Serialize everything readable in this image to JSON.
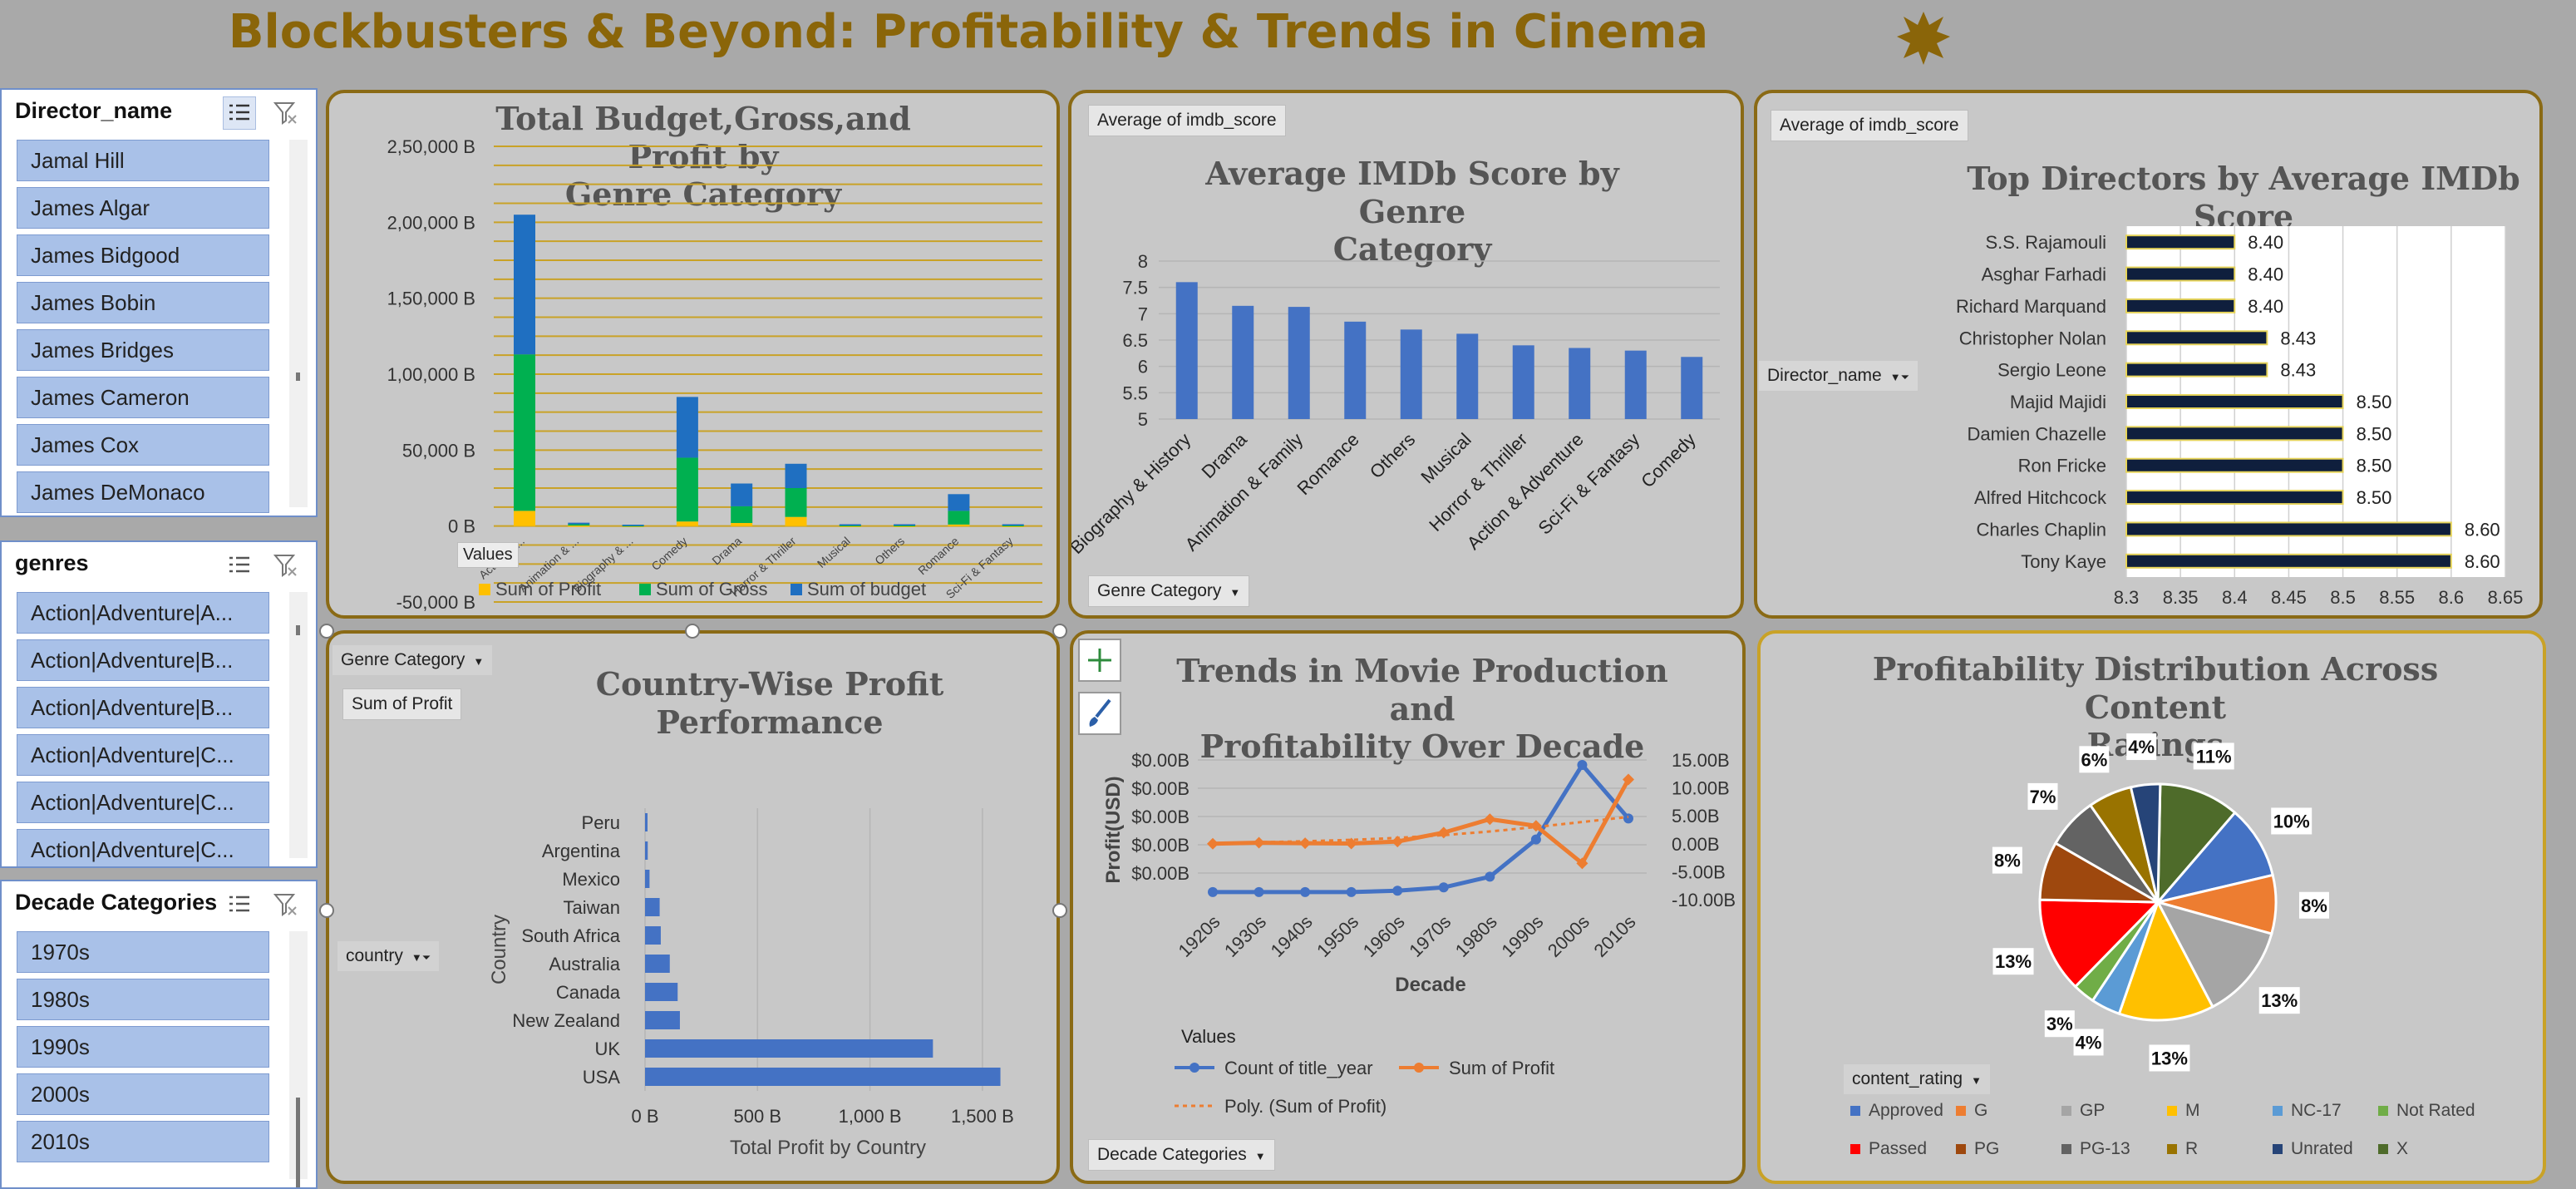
{
  "dashboard": {
    "title": "Blockbusters & Beyond: Profitability & Trends in Cinema"
  },
  "slicers": {
    "director": {
      "header": "Director_name",
      "items": [
        "Jamal Hill",
        "James Algar",
        "James Bidgood",
        "James Bobin",
        "James Bridges",
        "James Cameron",
        "James Cox",
        "James DeMonaco"
      ]
    },
    "genres": {
      "header": "genres",
      "items": [
        "Action|Adventure|A...",
        "Action|Adventure|B...",
        "Action|Adventure|B...",
        "Action|Adventure|C...",
        "Action|Adventure|C...",
        "Action|Adventure|C..."
      ]
    },
    "decade": {
      "header": "Decade Categories",
      "items": [
        "1970s",
        "1980s",
        "1990s",
        "2000s",
        "2010s"
      ]
    }
  },
  "panels": {
    "budget": {
      "title_line1": "Total Budget,Gross,and Profit by",
      "title_line2": "Genre Category",
      "values_button": "Values"
    },
    "imdb": {
      "title_line1": "Average IMDb Score by Genre",
      "title_line2": "Category",
      "field_button": "Average of imdb_score",
      "axis_button": "Genre Category"
    },
    "directors": {
      "title": "Top Directors by Average IMDb Score",
      "field_button": "Average of imdb_score",
      "axis_button": "Director_name"
    },
    "country": {
      "title": "Country-Wise Profit Performance",
      "filter_button": "Genre Category",
      "field_button": "Sum of Profit",
      "axis_button": "country"
    },
    "trends": {
      "title_line1": "Trends in Movie Production and",
      "title_line2": "Profitability Over Decade",
      "values_label": "Values",
      "axis_button": "Decade Categories"
    },
    "ratings": {
      "title_line1": "Profitability Distribution Across Content",
      "title_line2": "Ratings",
      "field_button": "content_rating"
    }
  },
  "chart_data": [
    {
      "id": "budget_gross_profit",
      "type": "bar",
      "stacked": true,
      "title": "Total Budget,Gross,and Profit by Genre Category",
      "categories": [
        "Action & ...",
        "Animation & ...",
        "Biography & ...",
        "Comedy",
        "Drama",
        "Horror & Thriller",
        "Musical",
        "Others",
        "Romance",
        "Sci-Fi & Fantasy"
      ],
      "series": [
        {
          "name": "Sum of Profit",
          "color": "#ffc000",
          "values": [
            10000,
            300,
            100,
            3000,
            2000,
            6000,
            100,
            100,
            1000,
            100
          ]
        },
        {
          "name": "Sum of Gross",
          "color": "#00b050",
          "values": [
            103000,
            900,
            400,
            42000,
            11000,
            19000,
            500,
            500,
            9000,
            500
          ]
        },
        {
          "name": "Sum of budget",
          "color": "#1f6fc1",
          "values": [
            92000,
            1000,
            400,
            40000,
            15000,
            16000,
            600,
            600,
            11000,
            600
          ]
        }
      ],
      "yticks": [
        "2,50,000 B",
        "2,00,000 B",
        "1,50,000 B",
        "1,00,000 B",
        "50,000 B",
        "0 B",
        "-50,000 B"
      ],
      "ylim": [
        -50000,
        250000
      ]
    },
    {
      "id": "imdb_by_genre",
      "type": "bar",
      "title": "Average IMDb Score by Genre Category",
      "categories": [
        "Biography & History",
        "Drama",
        "Animation & Family",
        "Romance",
        "Others",
        "Musical",
        "Horror & Thriller",
        "Action & Adventure",
        "Sci-Fi & Fantasy",
        "Comedy"
      ],
      "values": [
        7.6,
        7.15,
        7.13,
        6.85,
        6.7,
        6.62,
        6.4,
        6.35,
        6.3,
        6.18
      ],
      "yticks": [
        "8",
        "7.5",
        "7",
        "6.5",
        "6",
        "5.5",
        "5"
      ],
      "ylim": [
        5,
        8
      ],
      "color": "#4472c4"
    },
    {
      "id": "top_directors",
      "type": "bar",
      "orientation": "horizontal",
      "title": "Top Directors by Average IMDb Score",
      "categories": [
        "S.S. Rajamouli",
        "Asghar Farhadi",
        "Richard Marquand",
        "Christopher Nolan",
        "Sergio Leone",
        "Majid Majidi",
        "Damien Chazelle",
        "Ron Fricke",
        "Alfred Hitchcock",
        "Charles Chaplin",
        "Tony Kaye"
      ],
      "values": [
        8.4,
        8.4,
        8.4,
        8.43,
        8.43,
        8.5,
        8.5,
        8.5,
        8.5,
        8.6,
        8.6
      ],
      "labels": [
        "8.40",
        "8.40",
        "8.40",
        "8.43",
        "8.43",
        "8.50",
        "8.50",
        "8.50",
        "8.50",
        "8.60",
        "8.60"
      ],
      "xticks": [
        "8.3",
        "8.35",
        "8.4",
        "8.45",
        "8.5",
        "8.55",
        "8.6",
        "8.65"
      ],
      "xlim": [
        8.3,
        8.65
      ],
      "color": "#0f1f3d"
    },
    {
      "id": "country_profit",
      "type": "bar",
      "orientation": "horizontal",
      "title": "Country-Wise Profit Performance",
      "categories": [
        "Peru",
        "Argentina",
        "Mexico",
        "Taiwan",
        "South Africa",
        "Australia",
        "Canada",
        "New Zealand",
        "UK",
        "USA"
      ],
      "values": [
        8,
        12,
        20,
        65,
        70,
        110,
        145,
        155,
        1280,
        1580
      ],
      "xticks": [
        "0 B",
        "500 B",
        "1,000 B",
        "1,500 B"
      ],
      "xlim": [
        0,
        1700
      ],
      "xlabel": "Total Profit by Country",
      "ylabel": "Country",
      "color": "#4472c4"
    },
    {
      "id": "decade_trends",
      "type": "line",
      "title": "Trends in Movie Production and Profitability Over Decade",
      "x": [
        "1920s",
        "1930s",
        "1940s",
        "1950s",
        "1960s",
        "1970s",
        "1980s",
        "1990s",
        "2000s",
        "2010s"
      ],
      "series": [
        {
          "name": "Count of title_year",
          "color": "#4472c4",
          "values": [
            0.02,
            0.02,
            0.02,
            0.02,
            0.05,
            0.12,
            0.35,
            1.15,
            2.75,
            1.6
          ]
        },
        {
          "name": "Sum of Profit",
          "color": "#ed7d31",
          "values": [
            0.0,
            0.2,
            0.1,
            0.05,
            0.4,
            2.0,
            4.4,
            3.2,
            -3.5,
            11.5
          ]
        },
        {
          "name": "Poly. (Sum of Profit)",
          "color": "#ed7d31",
          "dashed": true,
          "values": [
            0.0,
            0.25,
            0.45,
            0.7,
            1.05,
            1.55,
            2.2,
            3.0,
            3.9,
            4.8
          ]
        }
      ],
      "y_left_ticks": [
        "$0.00B",
        "$0.00B",
        "$0.00B",
        "$0.00B",
        "$0.00B"
      ],
      "y_right_ticks": [
        "15.00B",
        "10.00B",
        "5.00B",
        "0.00B",
        "-5.00B",
        "-10.00B"
      ],
      "y_right_lim": [
        -10,
        15
      ],
      "xlabel": "Decade",
      "ylabel": "Profit(USD)"
    },
    {
      "id": "rating_pie",
      "type": "pie",
      "title": "Profitability Distribution Across Content Ratings",
      "slices": [
        {
          "name": "X",
          "value": 11,
          "label": "11%",
          "color": "#4e6b2a"
        },
        {
          "name": "Approved",
          "value": 10,
          "label": "10%",
          "color": "#4472c4"
        },
        {
          "name": "G",
          "value": 8,
          "label": "8%",
          "color": "#ed7d31"
        },
        {
          "name": "GP",
          "value": 13,
          "label": "13%",
          "color": "#a5a5a5"
        },
        {
          "name": "M",
          "value": 13,
          "label": "13%",
          "color": "#ffc000"
        },
        {
          "name": "NC-17",
          "value": 4,
          "label": "4%",
          "color": "#5b9bd5"
        },
        {
          "name": "Not Rated",
          "value": 3,
          "label": "3%",
          "color": "#70ad47"
        },
        {
          "name": "Passed",
          "value": 13,
          "label": "13%",
          "color": "#ff0000"
        },
        {
          "name": "PG",
          "value": 8,
          "label": "8%",
          "color": "#9e480e"
        },
        {
          "name": "PG-13",
          "value": 7,
          "label": "7%",
          "color": "#636363"
        },
        {
          "name": "R",
          "value": 6,
          "label": "6%",
          "color": "#997300"
        },
        {
          "name": "Unrated",
          "value": 4,
          "label": "4%",
          "color": "#264478"
        }
      ],
      "legend": [
        {
          "name": "Approved",
          "color": "#4472c4"
        },
        {
          "name": "G",
          "color": "#ed7d31"
        },
        {
          "name": "GP",
          "color": "#a5a5a5"
        },
        {
          "name": "M",
          "color": "#ffc000"
        },
        {
          "name": "NC-17",
          "color": "#5b9bd5"
        },
        {
          "name": "Not Rated",
          "color": "#70ad47"
        },
        {
          "name": "Passed",
          "color": "#ff0000"
        },
        {
          "name": "PG",
          "color": "#9e480e"
        },
        {
          "name": "PG-13",
          "color": "#636363"
        },
        {
          "name": "R",
          "color": "#997300"
        },
        {
          "name": "Unrated",
          "color": "#264478"
        },
        {
          "name": "X",
          "color": "#4e6b2a"
        }
      ]
    }
  ]
}
